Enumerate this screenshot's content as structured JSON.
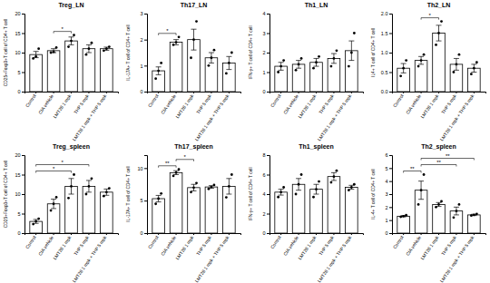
{
  "chart_data": [
    {
      "type": "bar",
      "title": "Treg_LN",
      "y_label": "CD25+Foxp3+T cell of CD4+ T cell",
      "categories": [
        "Control",
        "CIA vehicle",
        "LMT28 1 mpk",
        "THP 5 mpk",
        "LMT28 1 mpk + THP 5 mpk"
      ],
      "values": [
        9.5,
        10.5,
        13,
        11,
        11
      ],
      "errors": [
        0.8,
        0.5,
        1.0,
        1.0,
        0.4
      ],
      "points": [
        [
          8.5,
          9.0,
          11.0
        ],
        [
          10.0,
          10.2,
          11.3
        ],
        [
          11.5,
          13.0,
          14.5
        ],
        [
          9.5,
          11.0,
          12.5
        ],
        [
          10.5,
          11.0,
          11.5
        ]
      ],
      "annotations": [
        {
          "categories": [
            "CIA vehicle",
            "LMT28 1 mpk"
          ],
          "text": "*"
        }
      ],
      "ylim": [
        0,
        20
      ],
      "yticks": [
        0,
        5,
        10,
        15,
        20
      ],
      "color": "#ffffff"
    },
    {
      "type": "bar",
      "title": "Th17_LN",
      "y_label": "IL-17A+ T cell of CD4+ T cell",
      "categories": [
        "Control",
        "CIA vehicle",
        "LMT28 1 mpk",
        "THP 5 mpk",
        "LMT28 1 mpk + THP 5 mpk"
      ],
      "values": [
        0.8,
        1.9,
        2.0,
        1.3,
        1.1
      ],
      "errors": [
        0.15,
        0.1,
        0.4,
        0.2,
        0.25
      ],
      "points": [
        [
          0.5,
          0.8,
          1.1
        ],
        [
          1.8,
          1.9,
          2.1
        ],
        [
          1.3,
          2.0,
          2.7
        ],
        [
          1.0,
          1.3,
          1.6
        ],
        [
          0.7,
          1.1,
          1.5
        ]
      ],
      "annotations": [
        {
          "categories": [
            "Control",
            "CIA vehicle"
          ],
          "text": "*"
        }
      ],
      "ylim": [
        0,
        3
      ],
      "yticks": [
        0,
        1,
        2,
        3
      ],
      "color": "#ffffff"
    },
    {
      "type": "bar",
      "title": "Th1_LN",
      "y_label": "IFN-γ+ T cell of CD4+ T cell",
      "categories": [
        "Control",
        "CIA vehicle",
        "LMT28 1 mpk",
        "THP 5 mpk",
        "LMT28 1 mpk + THP 5 mpk"
      ],
      "values": [
        1.3,
        1.4,
        1.5,
        1.7,
        2.1
      ],
      "errors": [
        0.2,
        0.2,
        0.2,
        0.25,
        0.5
      ],
      "points": [
        [
          1.0,
          1.3,
          1.6
        ],
        [
          1.1,
          1.4,
          1.7
        ],
        [
          1.2,
          1.5,
          1.8
        ],
        [
          1.3,
          1.7,
          2.1
        ],
        [
          1.3,
          2.0,
          3.0
        ]
      ],
      "annotations": [],
      "ylim": [
        0,
        4
      ],
      "yticks": [
        0,
        1,
        2,
        3,
        4
      ],
      "color": "#ffffff"
    },
    {
      "type": "bar",
      "title": "Th2_LN",
      "y_label": "IL4+ T cell of CD4+ T cell",
      "categories": [
        "Control",
        "CIA vehicle",
        "LMT28 1 mpk",
        "THP 5 mpk",
        "LMT28 1 mpk + THP 5 mpk"
      ],
      "values": [
        0.6,
        0.8,
        1.5,
        0.7,
        0.6
      ],
      "errors": [
        0.12,
        0.1,
        0.2,
        0.15,
        0.1
      ],
      "points": [
        [
          0.4,
          0.6,
          0.8
        ],
        [
          0.65,
          0.8,
          0.95
        ],
        [
          1.2,
          1.5,
          1.8
        ],
        [
          0.5,
          0.7,
          0.95
        ],
        [
          0.45,
          0.6,
          0.75
        ]
      ],
      "annotations": [
        {
          "categories": [
            "CIA vehicle",
            "LMT28 1 mpk"
          ],
          "text": "*"
        }
      ],
      "ylim": [
        0,
        2
      ],
      "yticks": [
        {
          "value": 0,
          "label": "0.0"
        },
        {
          "value": 0.5,
          "label": "0.5"
        },
        {
          "value": 1,
          "label": "1.0"
        },
        {
          "value": 1.5,
          "label": "1.5"
        },
        {
          "value": 2,
          "label": "2.0"
        }
      ],
      "color": "#ffffff"
    },
    {
      "type": "bar",
      "title": "Treg_spleen",
      "y_label": "CD25+Foxp3+T cell of CD4+ T cell",
      "categories": [
        "Control",
        "CIA vehicle",
        "LMT28 1 mpk",
        "THP 5 mpk",
        "LMT28 1 mpk + THP 5 mpk"
      ],
      "values": [
        3,
        7.5,
        12,
        12,
        10.5
      ],
      "errors": [
        0.5,
        1.2,
        2,
        1.5,
        0.8
      ],
      "points": [
        [
          2.3,
          3.0,
          3.7
        ],
        [
          5.8,
          7.5,
          9.2
        ],
        [
          9.0,
          12.0,
          15.0
        ],
        [
          10,
          12,
          14
        ],
        [
          9.5,
          10.5,
          11.5
        ]
      ],
      "annotations": [
        {
          "categories": [
            "Control",
            "LMT28 1 mpk"
          ],
          "text": "*"
        },
        {
          "categories": [
            "Control",
            "THP 5 mpk"
          ],
          "text": "*"
        }
      ],
      "ylim": [
        0,
        20
      ],
      "yticks": [
        0,
        5,
        10,
        15,
        20
      ],
      "color": "#ffffff"
    },
    {
      "type": "bar",
      "title": "Th17_spleen",
      "y_label": "IL-17A+ T cell of CD4+ T cell",
      "categories": [
        "Control",
        "CIA vehicle",
        "LMT28 1 mpk",
        "THP 5 mpk",
        "LMT28 1 mpk + THP 5 mpk"
      ],
      "values": [
        5.3,
        9.3,
        7.0,
        7.1,
        7.2
      ],
      "errors": [
        0.5,
        0.3,
        0.5,
        0.2,
        1.2
      ],
      "points": [
        [
          4.5,
          5.3,
          6.1
        ],
        [
          8.8,
          9.3,
          9.8
        ],
        [
          6.3,
          7.0,
          7.7
        ],
        [
          6.8,
          7.1,
          7.4
        ],
        [
          5.5,
          7.2,
          9.0
        ]
      ],
      "annotations": [
        {
          "categories": [
            "Control",
            "CIA vehicle"
          ],
          "text": "**"
        },
        {
          "categories": [
            "CIA vehicle",
            "LMT28 1 mpk"
          ],
          "text": "*"
        }
      ],
      "ylim": [
        0,
        12
      ],
      "yticks": [
        0,
        5,
        10
      ],
      "color": "#ffffff"
    },
    {
      "type": "bar",
      "title": "Th1_spleen",
      "y_label": "IFN-γ+ T cell of CD4+ T cell",
      "categories": [
        "Control",
        "CIA vehicle",
        "LMT28 1 mpk",
        "THP 5 mpk",
        "LMT28 1 mpk + THP 5 mpk"
      ],
      "values": [
        4.2,
        5.0,
        4.5,
        5.8,
        4.7
      ],
      "errors": [
        0.3,
        0.6,
        0.5,
        0.4,
        0.2
      ],
      "points": [
        [
          3.7,
          4.2,
          4.7
        ],
        [
          4.0,
          5.0,
          6.0
        ],
        [
          3.7,
          4.5,
          5.3
        ],
        [
          5.2,
          5.8,
          6.4
        ],
        [
          4.4,
          4.7,
          5.0
        ]
      ],
      "annotations": [],
      "ylim": [
        0,
        8
      ],
      "yticks": [
        0,
        2,
        4,
        6,
        8
      ],
      "color": "#ffffff"
    },
    {
      "type": "bar",
      "title": "Th2_spleen",
      "y_label": "IL-4+ T cell of CD4+ T cell",
      "categories": [
        "Control",
        "CIA vehicle",
        "LMT28 1 mpk",
        "THP 5 mpk",
        "LMT28 1 mpk + THP 5 mpk"
      ],
      "values": [
        1.3,
        3.3,
        2.2,
        1.7,
        1.4
      ],
      "errors": [
        0.05,
        0.7,
        0.15,
        0.3,
        0.05
      ],
      "points": [
        [
          1.25,
          1.3,
          1.38
        ],
        [
          2.2,
          3.3,
          4.5
        ],
        [
          2.0,
          2.2,
          2.45
        ],
        [
          1.2,
          1.7,
          2.2
        ],
        [
          1.35,
          1.4,
          1.48
        ]
      ],
      "annotations": [
        {
          "categories": [
            "Control",
            "CIA vehicle"
          ],
          "text": "**"
        },
        {
          "categories": [
            "CIA vehicle",
            "THP 5 mpk"
          ],
          "text": "**"
        },
        {
          "categories": [
            "CIA vehicle",
            "LMT28 1 mpk + THP 5 mpk"
          ],
          "text": "**"
        }
      ],
      "ylim": [
        0,
        6
      ],
      "yticks": [
        0,
        1,
        2,
        3,
        4,
        5,
        6
      ],
      "color": "#ffffff"
    }
  ]
}
